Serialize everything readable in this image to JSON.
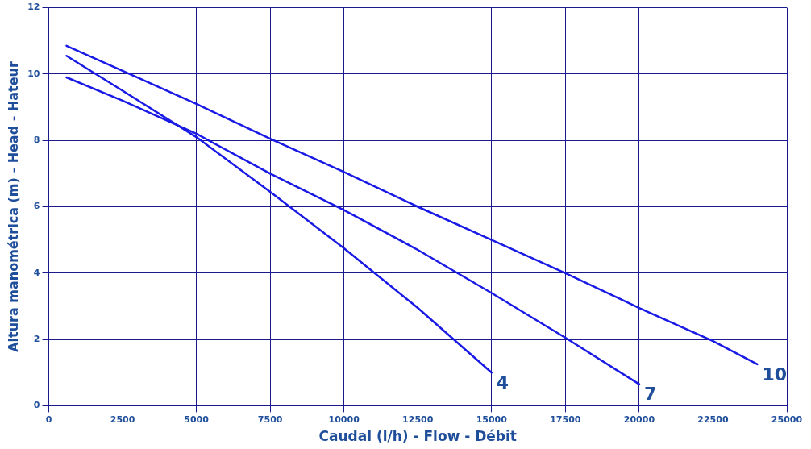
{
  "chart_data": {
    "type": "line",
    "xlabel": "Caudal (l/h) - Flow - Débit",
    "ylabel": "Altura manométrica (m) - Head - Hateur",
    "xlim": [
      0,
      25000
    ],
    "xticks": [
      0,
      2500,
      5000,
      7500,
      10000,
      12500,
      15000,
      17500,
      20000,
      22500,
      25000
    ],
    "ylim": [
      0,
      12
    ],
    "yticks": [
      0,
      2,
      4,
      6,
      8,
      10,
      12
    ],
    "grid": true,
    "legend": false,
    "marker": "none",
    "line_style": "solid",
    "series": [
      {
        "name": "4",
        "color": "#1a1ae6",
        "x": [
          600,
          2500,
          5000,
          7500,
          10000,
          12500,
          15000
        ],
        "values": [
          10.55,
          9.5,
          8.1,
          6.45,
          4.75,
          2.95,
          1.0
        ]
      },
      {
        "name": "7",
        "color": "#1a1ae6",
        "x": [
          600,
          2500,
          5000,
          7500,
          10000,
          12500,
          15000,
          17500,
          20000
        ],
        "values": [
          9.9,
          9.2,
          8.2,
          7.0,
          5.9,
          4.7,
          3.4,
          2.05,
          0.65
        ]
      },
      {
        "name": "10",
        "color": "#1a1ae6",
        "x": [
          600,
          2500,
          5000,
          7500,
          10000,
          12500,
          15000,
          17500,
          20000,
          22500,
          24000
        ],
        "values": [
          10.85,
          10.1,
          9.1,
          8.05,
          7.05,
          6.0,
          5.0,
          4.0,
          2.95,
          1.95,
          1.25
        ]
      }
    ]
  }
}
